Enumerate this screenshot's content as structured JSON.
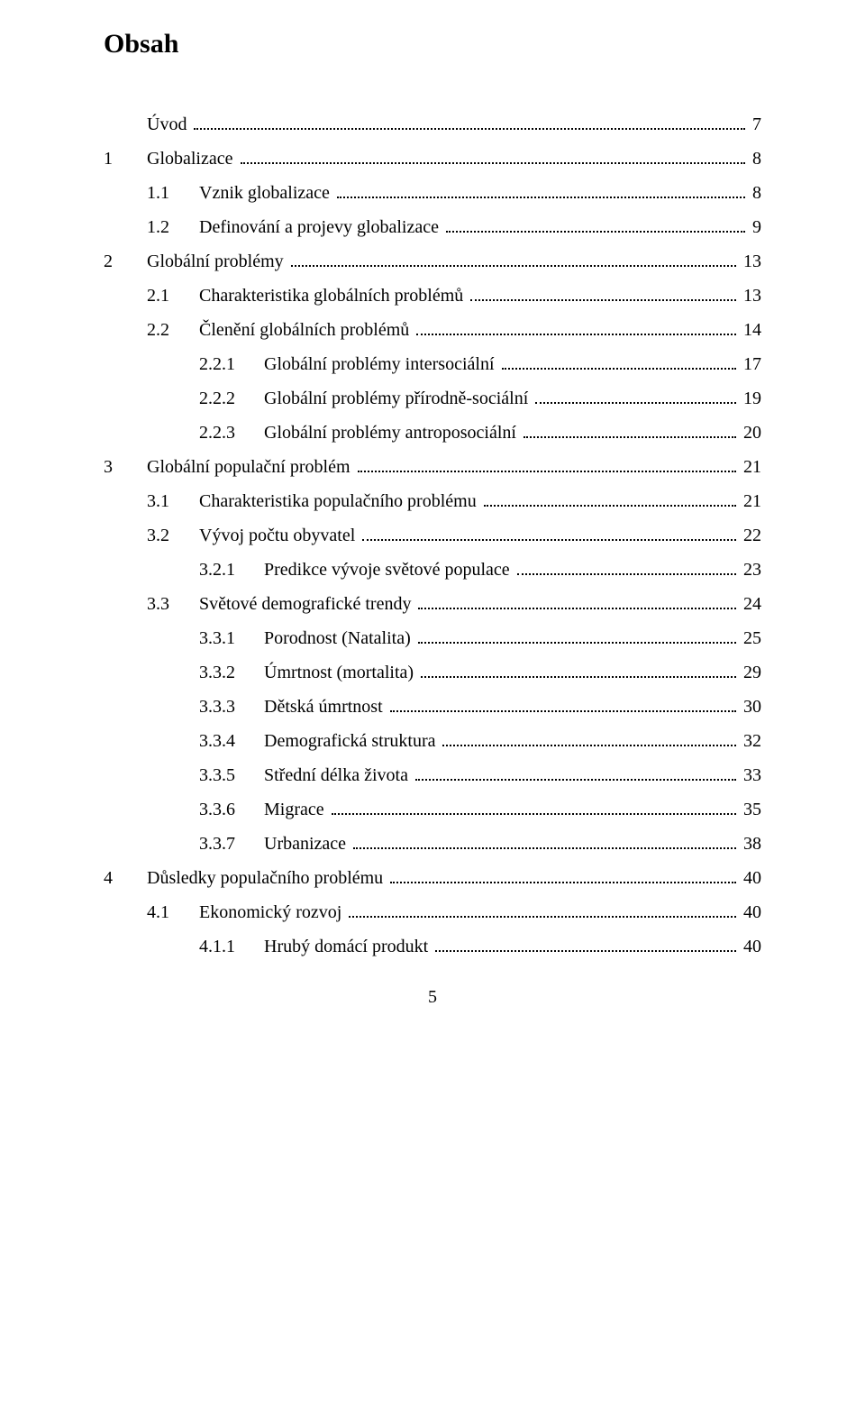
{
  "title": "Obsah",
  "footer_page": "5",
  "toc": [
    {
      "level": "top",
      "num": "",
      "label": "Úvod",
      "page": "7"
    },
    {
      "level": 0,
      "num": "1",
      "label": "Globalizace",
      "page": "8"
    },
    {
      "level": 1,
      "num": "1.1",
      "label": "Vznik globalizace",
      "page": "8"
    },
    {
      "level": 1,
      "num": "1.2",
      "label": "Definování a projevy globalizace",
      "page": "9"
    },
    {
      "level": 0,
      "num": "2",
      "label": "Globální problémy",
      "page": "13"
    },
    {
      "level": 1,
      "num": "2.1",
      "label": "Charakteristika globálních problémů",
      "page": "13"
    },
    {
      "level": 1,
      "num": "2.2",
      "label": "Členění globálních problémů",
      "page": "14"
    },
    {
      "level": 2,
      "num": "2.2.1",
      "label": "Globální problémy intersociální",
      "page": "17"
    },
    {
      "level": 2,
      "num": "2.2.2",
      "label": "Globální problémy přírodně-sociální",
      "page": "19"
    },
    {
      "level": 2,
      "num": "2.2.3",
      "label": "Globální problémy antroposociální",
      "page": "20"
    },
    {
      "level": 0,
      "num": "3",
      "label": "Globální populační problém",
      "page": "21"
    },
    {
      "level": 1,
      "num": "3.1",
      "label": "Charakteristika populačního problému",
      "page": "21"
    },
    {
      "level": 1,
      "num": "3.2",
      "label": "Vývoj počtu obyvatel",
      "page": "22"
    },
    {
      "level": 2,
      "num": "3.2.1",
      "label": "Predikce vývoje světové populace",
      "page": "23"
    },
    {
      "level": 1,
      "num": "3.3",
      "label": "Světové demografické trendy",
      "page": "24"
    },
    {
      "level": 2,
      "num": "3.3.1",
      "label": "Porodnost (Natalita)",
      "page": "25"
    },
    {
      "level": 2,
      "num": "3.3.2",
      "label": "Úmrtnost (mortalita)",
      "page": "29"
    },
    {
      "level": 2,
      "num": "3.3.3",
      "label": "Dětská úmrtnost",
      "page": "30"
    },
    {
      "level": 2,
      "num": "3.3.4",
      "label": "Demografická struktura",
      "page": "32"
    },
    {
      "level": 2,
      "num": "3.3.5",
      "label": "Střední délka života",
      "page": "33"
    },
    {
      "level": 2,
      "num": "3.3.6",
      "label": "Migrace",
      "page": "35"
    },
    {
      "level": 2,
      "num": "3.3.7",
      "label": "Urbanizace",
      "page": "38"
    },
    {
      "level": 0,
      "num": "4",
      "label": "Důsledky populačního problému",
      "page": "40"
    },
    {
      "level": 1,
      "num": "4.1",
      "label": "Ekonomický rozvoj",
      "page": "40"
    },
    {
      "level": 2,
      "num": "4.1.1",
      "label": "Hrubý domácí produkt",
      "page": "40"
    }
  ]
}
